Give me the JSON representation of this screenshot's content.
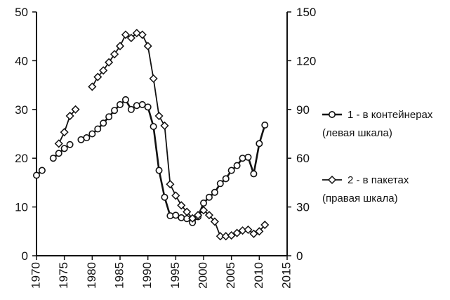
{
  "chart_data": {
    "type": "line",
    "title": "",
    "xlabel": "",
    "ylabel": "",
    "y2label": "",
    "xlim": [
      1970,
      2015
    ],
    "ylim": [
      0,
      50
    ],
    "y2lim": [
      0,
      150
    ],
    "x_ticks": [
      1970,
      1975,
      1980,
      1985,
      1990,
      1995,
      2000,
      2005,
      2010,
      2015
    ],
    "y_ticks": [
      0,
      10,
      20,
      30,
      40,
      50
    ],
    "y2_ticks": [
      0,
      30,
      60,
      90,
      120,
      150
    ],
    "grid": false,
    "legend_position": "right",
    "series": [
      {
        "name": "1 - в контейнерах",
        "name_line2": "(левая шкала)",
        "axis": "left",
        "marker": "circle",
        "color": "#111111",
        "segments": [
          [
            [
              1970,
              16.5
            ],
            [
              1971,
              17.5
            ]
          ],
          [
            [
              1973,
              20.0
            ],
            [
              1974,
              21.0
            ],
            [
              1975,
              22.0
            ],
            [
              1976,
              22.8
            ]
          ],
          [
            [
              1978,
              23.8
            ],
            [
              1979,
              24.2
            ],
            [
              1980,
              25.0
            ],
            [
              1981,
              26.0
            ],
            [
              1982,
              27.2
            ],
            [
              1983,
              28.5
            ],
            [
              1984,
              29.8
            ],
            [
              1985,
              31.0
            ],
            [
              1986,
              32.0
            ],
            [
              1987,
              30.0
            ],
            [
              1988,
              30.8
            ],
            [
              1989,
              31.0
            ],
            [
              1990,
              30.5
            ],
            [
              1991,
              26.5
            ],
            [
              1992,
              17.5
            ],
            [
              1993,
              12.0
            ],
            [
              1994,
              8.2
            ],
            [
              1995,
              8.3
            ],
            [
              1996,
              7.8
            ],
            [
              1997,
              7.6
            ],
            [
              1998,
              6.8
            ],
            [
              1999,
              8.0
            ],
            [
              2000,
              10.8
            ],
            [
              2001,
              12.0
            ],
            [
              2002,
              13.0
            ],
            [
              2003,
              14.8
            ],
            [
              2004,
              15.8
            ],
            [
              2005,
              17.5
            ],
            [
              2006,
              18.5
            ],
            [
              2007,
              20.0
            ],
            [
              2008,
              20.2
            ],
            [
              2009,
              16.8
            ],
            [
              2010,
              23.0
            ],
            [
              2011,
              26.8
            ]
          ]
        ]
      },
      {
        "name": "2 - в пакетах",
        "name_line2": "(правая шкала)",
        "axis": "right",
        "marker": "diamond",
        "color": "#111111",
        "segments": [
          [
            [
              1974,
              69.0
            ],
            [
              1975,
              76.0
            ],
            [
              1976,
              86.0
            ],
            [
              1977,
              90.0
            ]
          ],
          [
            [
              1980,
              104.0
            ],
            [
              1981,
              110.0
            ],
            [
              1982,
              114.0
            ],
            [
              1983,
              119.0
            ],
            [
              1984,
              124.0
            ],
            [
              1985,
              129.0
            ],
            [
              1986,
              136.0
            ],
            [
              1987,
              134.0
            ],
            [
              1988,
              137.0
            ],
            [
              1989,
              136.0
            ],
            [
              1990,
              129.0
            ],
            [
              1991,
              109.0
            ],
            [
              1992,
              86.0
            ],
            [
              1993,
              80.0
            ],
            [
              1994,
              44.0
            ],
            [
              1995,
              37.0
            ],
            [
              1996,
              31.0
            ],
            [
              1997,
              27.0
            ],
            [
              1998,
              23.0
            ],
            [
              1999,
              25.0
            ],
            [
              2000,
              28.0
            ],
            [
              2001,
              25.0
            ],
            [
              2002,
              21.0
            ],
            [
              2003,
              12.0
            ],
            [
              2004,
              12.0
            ],
            [
              2005,
              12.5
            ],
            [
              2006,
              14.0
            ],
            [
              2007,
              15.5
            ],
            [
              2008,
              16.0
            ],
            [
              2009,
              13.5
            ],
            [
              2010,
              15.0
            ],
            [
              2011,
              19.0
            ]
          ]
        ]
      }
    ]
  }
}
